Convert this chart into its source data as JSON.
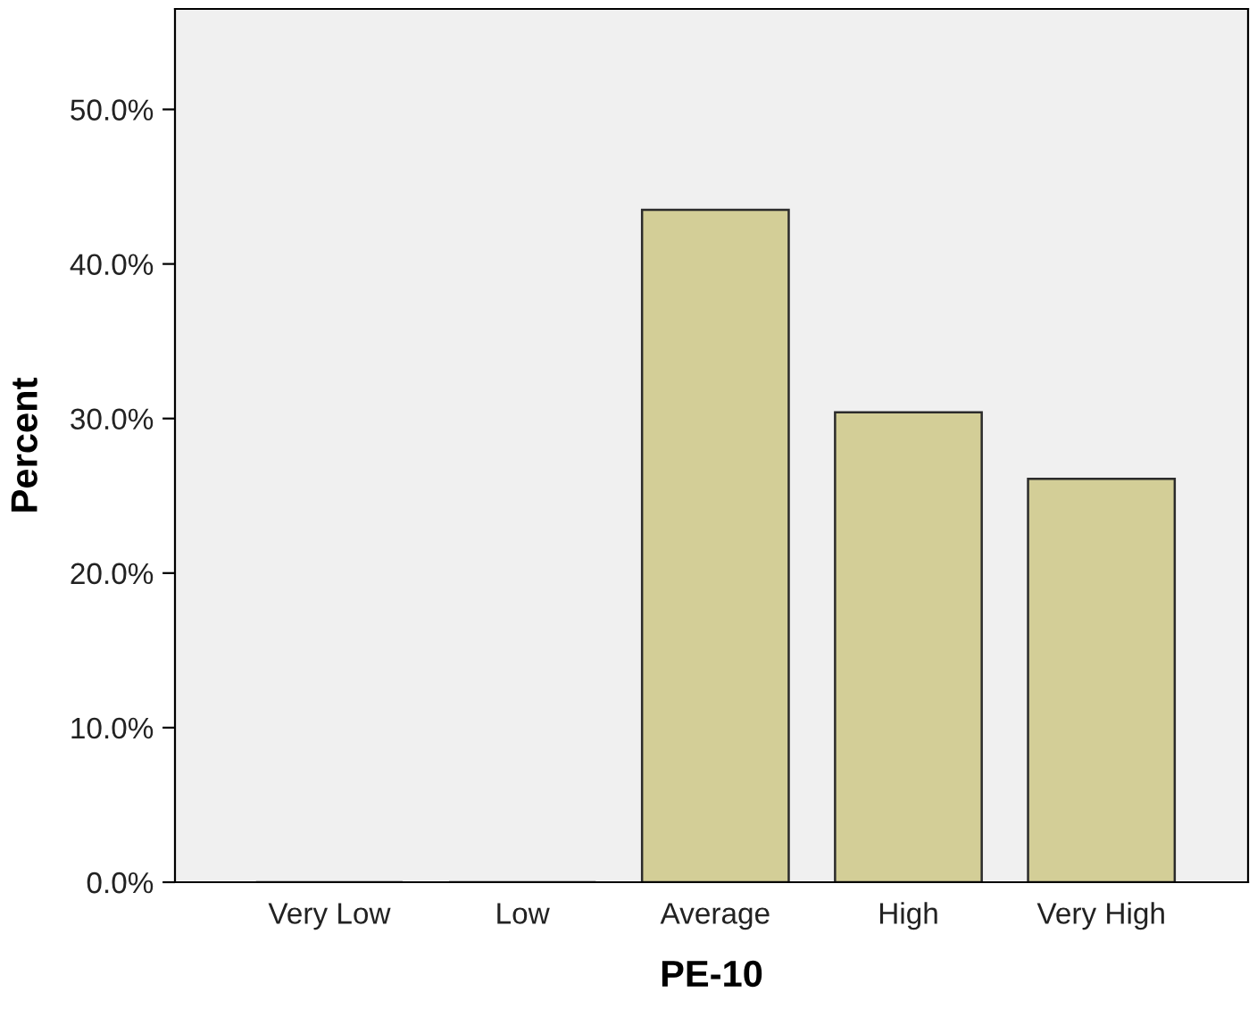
{
  "chart_data": {
    "type": "bar",
    "xlabel": "PE-10",
    "ylabel": "Percent",
    "categories": [
      "Very Low",
      "Low",
      "Average",
      "High",
      "Very High"
    ],
    "values": [
      0,
      0,
      43.5,
      30.4,
      26.1
    ],
    "color": "#d3ce97",
    "ylim": [
      0,
      56.5
    ],
    "yticks": [
      {
        "value": 0,
        "label": "0.0%"
      },
      {
        "value": 10,
        "label": "10.0%"
      },
      {
        "value": 20,
        "label": "20.0%"
      },
      {
        "value": 30,
        "label": "30.0%"
      },
      {
        "value": 40,
        "label": "40.0%"
      },
      {
        "value": 50,
        "label": "50.0%"
      }
    ],
    "grid": false
  }
}
